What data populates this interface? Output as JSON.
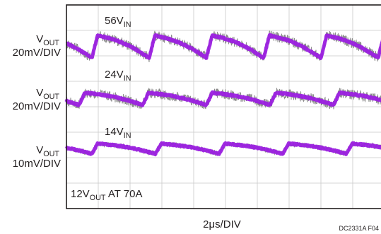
{
  "chart_data": {
    "type": "line",
    "xlabel": "2μs/DIV",
    "figure_id": "DC2331A F04",
    "grid": true,
    "grid_divisions": {
      "x": 10,
      "y": 8
    },
    "annotation": {
      "main": "12V",
      "sub": "OUT",
      "rest": " AT 70A"
    },
    "series": [
      {
        "name": {
          "main": "56V",
          "sub": "IN"
        },
        "ylabel": {
          "main": "V",
          "sub": "OUT",
          "scale": "20mV/DIV"
        },
        "baseline_div": 1.75,
        "trace_color": "#9b1fe0",
        "noise_color": "#8c8c8c",
        "period_div": 1.8,
        "first_step_div": 0.8,
        "edge_amplitude_div": 0.55,
        "noise_div": 0.2
      },
      {
        "name": {
          "main": "24V",
          "sub": "IN"
        },
        "ylabel": {
          "main": "V",
          "sub": "OUT",
          "scale": "20mV/DIV"
        },
        "baseline_div": 3.75,
        "trace_color": "#9b1fe0",
        "noise_color": "#8c8c8c",
        "period_div": 2.0,
        "first_step_div": 0.4,
        "edge_amplitude_div": 0.3,
        "noise_div": 0.2
      },
      {
        "name": {
          "main": "14V",
          "sub": "IN"
        },
        "ylabel": {
          "main": "V",
          "sub": "OUT",
          "scale": "10mV/DIV"
        },
        "baseline_div": 5.7,
        "trace_color": "#9b1fe0",
        "noise_color": "#8c8c8c",
        "period_div": 2.0,
        "first_step_div": 0.8,
        "edge_amplitude_div": 0.25,
        "noise_div": 0.1
      }
    ]
  }
}
